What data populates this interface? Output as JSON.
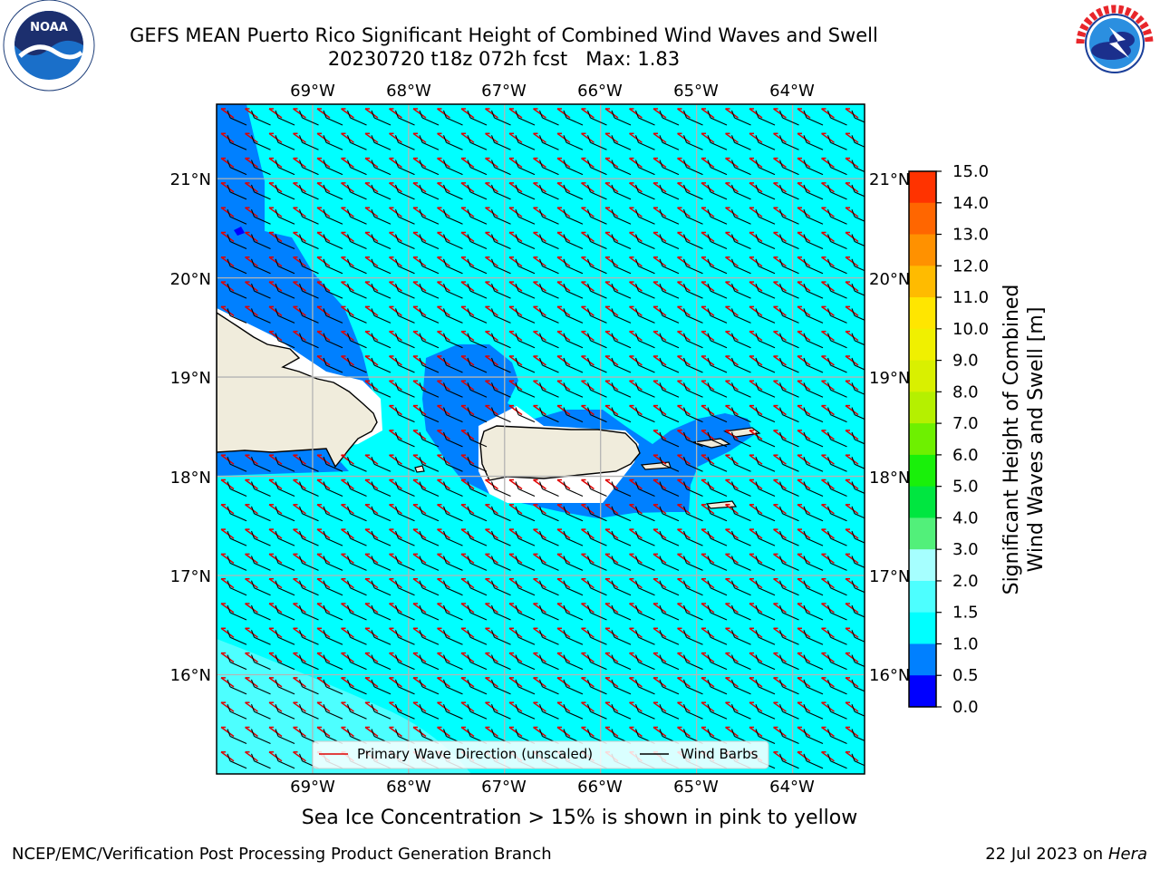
{
  "title_line1": "GEFS MEAN Puerto Rico Significant Height of Combined Wind Waves and Swell",
  "title_line2": "20230720 t18z 072h fcst   Max: 1.83",
  "logos": {
    "left": "noaa-logo",
    "right": "nws-logo"
  },
  "map": {
    "lon_labels": [
      "69°W",
      "68°W",
      "67°W",
      "66°W",
      "65°W",
      "64°W"
    ],
    "lat_labels": [
      "21°N",
      "20°N",
      "19°N",
      "18°N",
      "17°N",
      "16°N"
    ],
    "lon_values": [
      -69,
      -68,
      -67,
      -66,
      -65,
      -64
    ],
    "lat_values": [
      21,
      20,
      19,
      18,
      17,
      16
    ],
    "lon_range": [
      -70,
      -63.25
    ],
    "lat_range": [
      15.0,
      21.75
    ],
    "sea_color": "#00ffff",
    "land_color": "#f0ecdc",
    "legend": {
      "primary_wave": "Primary Wave Direction (unscaled)",
      "wind_barbs": "Wind Barbs"
    }
  },
  "colorbar": {
    "label_line1": "Significant Height of Combined",
    "label_line2": "Wind Waves and Swell [m]",
    "ticks": [
      "15.0",
      "14.0",
      "13.0",
      "12.0",
      "11.0",
      "10.0",
      "9.0",
      "8.0",
      "7.0",
      "6.0",
      "5.0",
      "4.0",
      "3.0",
      "2.0",
      "1.5",
      "1.0",
      "0.5",
      "0.0"
    ],
    "colors": [
      "#0000ff",
      "#0080ff",
      "#00ffff",
      "#4dffff",
      "#a6ffff",
      "#52f07a",
      "#00e640",
      "#19f00a",
      "#6ef000",
      "#b5f000",
      "#d9f000",
      "#f0f000",
      "#ffe600",
      "#ffbb00",
      "#ff9100",
      "#ff6600",
      "#ff3300",
      "#ff0000"
    ]
  },
  "note": "Sea Ice Concentration > 15% is shown in pink to yellow",
  "footer_left": "NCEP/EMC/Verification Post Processing Product Generation Branch",
  "footer_date": "22 Jul 2023 on ",
  "footer_host": "Hera"
}
